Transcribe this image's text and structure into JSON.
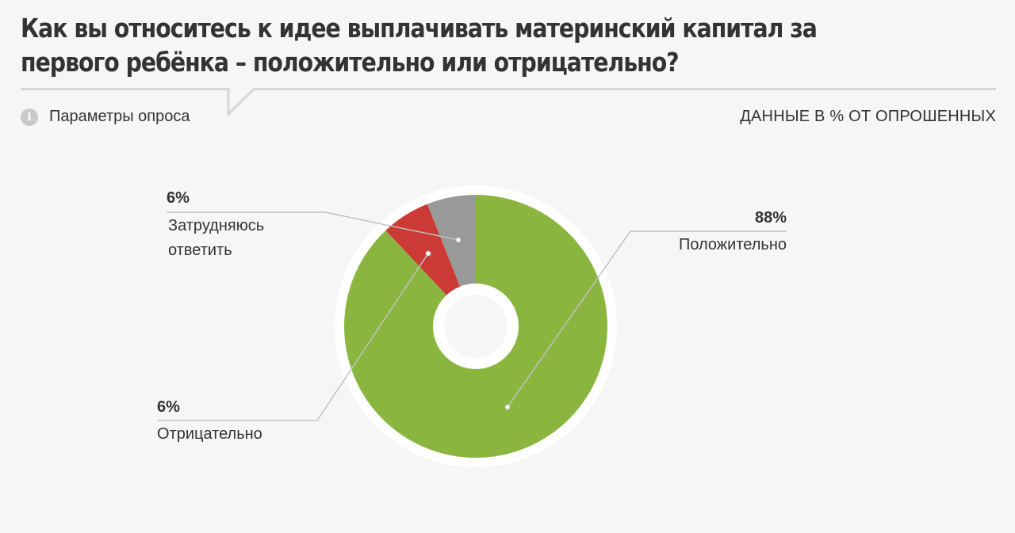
{
  "header": {
    "title": "Как вы относитесь к идее выплачивать материнский капитал за первого ребёнка – положительно или отрицательно?"
  },
  "params": {
    "label": "Параметры опроса",
    "icon": "info-icon"
  },
  "units_label": "ДАННЫЕ В % ОТ ОПРОШЕННЫХ",
  "colors": {
    "positive": "#8ab640",
    "negative": "#cc3a35",
    "undecided": "#999999",
    "background": "#f6f6f6"
  },
  "chart_data": {
    "type": "pie",
    "series": [
      {
        "label": "Положительно",
        "value": 88,
        "value_label": "88%",
        "color": "#8ab640"
      },
      {
        "label": "Отрицательно",
        "value": 6,
        "value_label": "6%",
        "color": "#cc3a35"
      },
      {
        "label": "Затрудняюсь ответить",
        "value": 6,
        "value_label": "6%",
        "color": "#999999"
      }
    ]
  },
  "labels": {
    "positive": {
      "value": "88%",
      "name": "Положительно"
    },
    "negative": {
      "value": "6%",
      "name": "Отрицательно"
    },
    "undecided": {
      "value": "6%",
      "name_line1": "Затрудняюсь",
      "name_line2": "ответить"
    }
  }
}
